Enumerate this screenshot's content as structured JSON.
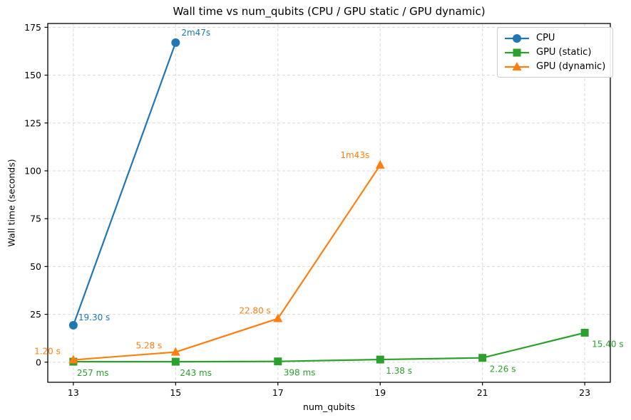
{
  "chart_data": {
    "type": "line",
    "title": "Wall time vs num_qubits (CPU / GPU static / GPU dynamic)",
    "xlabel": "num_qubits",
    "ylabel": "Wall time (seconds)",
    "x_ticks": [
      13,
      15,
      17,
      19,
      21,
      23
    ],
    "y_ticks": [
      0,
      25,
      50,
      75,
      100,
      125,
      150,
      175
    ],
    "xlim": [
      12.5,
      23.5
    ],
    "ylim": [
      -10.5,
      177
    ],
    "grid": true,
    "grid_style": "dashed",
    "legend_position": "upper right",
    "series": [
      {
        "name": "CPU",
        "color": "#1f77b4",
        "marker": "circle",
        "points": [
          {
            "x": 13,
            "y": 19.3,
            "label": "19.30 s",
            "anchor": "start",
            "dx": 7,
            "dy": -7
          },
          {
            "x": 15,
            "y": 167.0,
            "label": "2m47s",
            "anchor": "start",
            "dx": 8,
            "dy": -10
          }
        ]
      },
      {
        "name": "GPU (static)",
        "color": "#2ca02c",
        "marker": "square",
        "points": [
          {
            "x": 13,
            "y": 0.257,
            "label": "257 ms",
            "anchor": "start",
            "dx": 5,
            "dy": 20
          },
          {
            "x": 15,
            "y": 0.243,
            "label": "243 ms",
            "anchor": "start",
            "dx": 6,
            "dy": 20
          },
          {
            "x": 17,
            "y": 0.398,
            "label": "398 ms",
            "anchor": "start",
            "dx": 8,
            "dy": 20
          },
          {
            "x": 19,
            "y": 1.38,
            "label": "1.38 s",
            "anchor": "start",
            "dx": 8,
            "dy": 20
          },
          {
            "x": 21,
            "y": 2.26,
            "label": "2.26 s",
            "anchor": "start",
            "dx": 10,
            "dy": 20
          },
          {
            "x": 23,
            "y": 15.4,
            "label": "15.40 s",
            "anchor": "start",
            "dx": 10,
            "dy": 20
          }
        ]
      },
      {
        "name": "GPU (dynamic)",
        "color": "#ff7f0e",
        "marker": "triangle",
        "points": [
          {
            "x": 13,
            "y": 1.2,
            "label": "1.20 s",
            "anchor": "end",
            "dx": -18,
            "dy": -8
          },
          {
            "x": 15,
            "y": 5.28,
            "label": "5.28 s",
            "anchor": "end",
            "dx": -19,
            "dy": -5
          },
          {
            "x": 17,
            "y": 22.8,
            "label": "22.80 s",
            "anchor": "end",
            "dx": -10,
            "dy": -7
          },
          {
            "x": 19,
            "y": 103.0,
            "label": "1m43s",
            "anchor": "end",
            "dx": -15,
            "dy": -10
          }
        ]
      }
    ],
    "colors": {
      "grid": "#d9d9d9",
      "spine": "#000000",
      "tick_text": "#000000",
      "background": "#ffffff"
    }
  }
}
